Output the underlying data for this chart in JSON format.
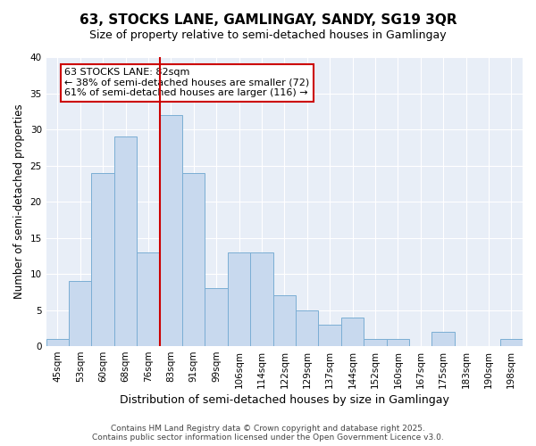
{
  "title_line1": "63, STOCKS LANE, GAMLINGAY, SANDY, SG19 3QR",
  "title_line2": "Size of property relative to semi-detached houses in Gamlingay",
  "xlabel": "Distribution of semi-detached houses by size in Gamlingay",
  "ylabel": "Number of semi-detached properties",
  "bar_labels": [
    "45sqm",
    "53sqm",
    "60sqm",
    "68sqm",
    "76sqm",
    "83sqm",
    "91sqm",
    "99sqm",
    "106sqm",
    "114sqm",
    "122sqm",
    "129sqm",
    "137sqm",
    "144sqm",
    "152sqm",
    "160sqm",
    "167sqm",
    "175sqm",
    "183sqm",
    "190sqm",
    "198sqm"
  ],
  "bar_values": [
    1,
    9,
    24,
    29,
    13,
    32,
    24,
    8,
    13,
    13,
    7,
    5,
    3,
    4,
    1,
    1,
    0,
    2,
    0,
    0,
    1
  ],
  "bar_color": "#c8d9ee",
  "bar_edgecolor": "#7baed4",
  "vline_x_index": 5,
  "vline_color": "#cc0000",
  "annotation_title": "63 STOCKS LANE: 82sqm",
  "annotation_line2": "← 38% of semi-detached houses are smaller (72)",
  "annotation_line3": "61% of semi-detached houses are larger (116) →",
  "annotation_box_edgecolor": "#cc0000",
  "background_color": "#ffffff",
  "plot_background_color": "#e8eef7",
  "grid_color": "#ffffff",
  "ylim": [
    0,
    40
  ],
  "yticks": [
    0,
    5,
    10,
    15,
    20,
    25,
    30,
    35,
    40
  ],
  "title_fontsize": 11,
  "subtitle_fontsize": 9,
  "xlabel_fontsize": 9,
  "ylabel_fontsize": 8.5,
  "tick_fontsize": 7.5,
  "annotation_fontsize": 8,
  "footer_fontsize": 6.5,
  "footer_line1": "Contains HM Land Registry data © Crown copyright and database right 2025.",
  "footer_line2": "Contains public sector information licensed under the Open Government Licence v3.0."
}
